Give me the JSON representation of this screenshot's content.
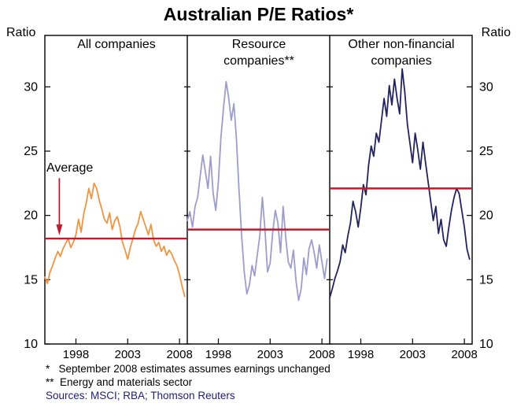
{
  "title": "Australian P/E Ratios*",
  "axis": {
    "left_label": "Ratio",
    "right_label": "Ratio"
  },
  "footnotes": {
    "line1": "*   September 2008 estimates assumes earnings unchanged",
    "line2": "**  Energy and materials sector",
    "sources": "Sources: MSCI; RBA; Thomson Reuters"
  },
  "colors": {
    "average_line": "#bd1b2e",
    "average_label": "#bd1b2e",
    "axis": "#000000",
    "sources_text": "#20207a",
    "background": "#ffffff"
  },
  "chart_data": {
    "type": "line",
    "title": "Australian P/E Ratios*",
    "ylabel": "Ratio",
    "ylim": [
      10,
      34
    ],
    "y_ticks": [
      10,
      15,
      20,
      25,
      30
    ],
    "x_ticks": [
      1998,
      2003,
      2008
    ],
    "xlim": [
      1995,
      2008.75
    ],
    "x_start": 1995,
    "x_step": 0.25,
    "grid": false,
    "legend": "none",
    "average_label": "Average",
    "average_line_color": "#bd1b2e",
    "panels": [
      {
        "title": "All companies",
        "color": "#f0953f",
        "average": 18.2,
        "values": [
          15.2,
          14.7,
          15.6,
          16.1,
          16.7,
          17.2,
          16.8,
          17.4,
          17.8,
          18.2,
          17.5,
          17.9,
          18.5,
          19.7,
          18.7,
          20.1,
          21.0,
          22.1,
          21.3,
          22.5,
          22.1,
          21.2,
          20.5,
          19.7,
          19.4,
          20.2,
          18.9,
          19.6,
          19.9,
          19.1,
          17.9,
          17.3,
          16.6,
          17.5,
          18.2,
          18.9,
          19.4,
          20.3,
          19.7,
          19.1,
          18.5,
          19.3,
          18.1,
          17.6,
          17.9,
          17.2,
          17.6,
          16.9,
          17.3,
          17.0,
          16.5,
          16.1,
          15.4,
          14.5,
          13.7
        ]
      },
      {
        "title": "Resource companies**",
        "color": "#9d9dcb",
        "average": 18.9,
        "values": [
          19.6,
          20.3,
          19.1,
          20.7,
          21.4,
          23.1,
          24.7,
          23.4,
          22.1,
          24.6,
          21.7,
          20.4,
          22.6,
          26.1,
          28.4,
          30.4,
          29.1,
          27.4,
          28.7,
          25.9,
          21.9,
          18.4,
          15.6,
          13.9,
          14.6,
          16.1,
          15.3,
          16.9,
          18.4,
          21.4,
          18.9,
          15.6,
          16.3,
          18.7,
          20.4,
          19.4,
          17.1,
          20.7,
          18.3,
          16.4,
          15.9,
          17.3,
          14.9,
          13.4,
          14.3,
          16.7,
          15.4,
          17.4,
          18.1,
          17.1,
          15.9,
          17.7,
          16.4,
          15.1,
          16.6
        ]
      },
      {
        "title": "Other non-financial companies",
        "color": "#23235f",
        "average": 22.1,
        "values": [
          13.6,
          14.3,
          15.1,
          15.7,
          16.4,
          17.7,
          17.1,
          18.4,
          19.4,
          21.1,
          20.3,
          19.1,
          20.6,
          22.4,
          21.6,
          23.9,
          25.4,
          24.6,
          26.4,
          25.7,
          27.4,
          29.1,
          27.7,
          30.1,
          28.6,
          30.6,
          29.1,
          27.9,
          31.4,
          29.6,
          27.1,
          25.6,
          24.1,
          26.4,
          25.1,
          23.6,
          25.7,
          24.1,
          22.6,
          21.1,
          19.6,
          20.7,
          18.6,
          19.7,
          18.1,
          17.6,
          19.1,
          20.4,
          21.4,
          22.1,
          21.7,
          20.4,
          19.1,
          17.4,
          16.6
        ]
      }
    ]
  }
}
